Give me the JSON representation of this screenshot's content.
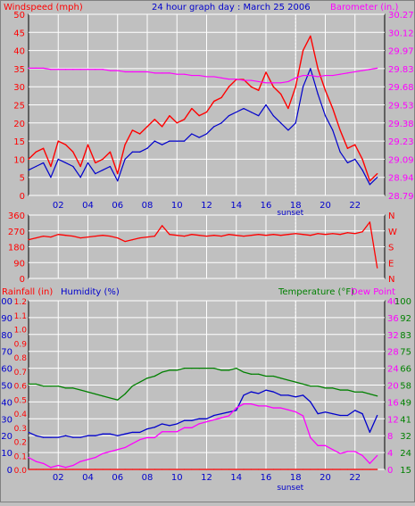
{
  "header": {
    "windspeed_label": "Windspeed (mph)",
    "title": "24 hour graph day : March 25 2006",
    "barometer_label": "Barometer (in.)"
  },
  "colors": {
    "background": "#c0c0c0",
    "plot_bg": "#c0c0c0",
    "grid": "#ffffff",
    "wind_gust": "#ff0000",
    "wind_avg": "#0000cc",
    "barometer": "#ff00ff",
    "wind_dir": "#ff0000",
    "rain": "#ff0000",
    "humidity": "#0000cc",
    "temperature": "#008000",
    "dewpoint": "#ff00ff"
  },
  "x_axis": {
    "ticks": [
      "02",
      "04",
      "06",
      "08",
      "10",
      "12",
      "14",
      "16",
      "18",
      "20",
      "22"
    ],
    "sunset_label": "sunset",
    "range_hours": [
      0,
      24
    ]
  },
  "chart_data": [
    {
      "type": "line",
      "title": "24 hour graph day : March 25 2006",
      "xlabel": "",
      "ylabel": "Windspeed (mph)",
      "y2label": "Barometer (in.)",
      "x_hours": [
        0,
        0.5,
        1,
        1.5,
        2,
        2.5,
        3,
        3.5,
        4,
        4.5,
        5,
        5.5,
        6,
        6.5,
        7,
        7.5,
        8,
        8.5,
        9,
        9.5,
        10,
        10.5,
        11,
        11.5,
        12,
        12.5,
        13,
        13.5,
        14,
        14.5,
        15,
        15.5,
        16,
        16.5,
        17,
        17.5,
        18,
        18.5,
        19,
        19.5,
        20,
        20.5,
        21,
        21.5,
        22,
        22.5,
        23,
        23.5
      ],
      "ylim": [
        0,
        50
      ],
      "yticks": [
        "0",
        "5",
        "10",
        "15",
        "20",
        "25",
        "30",
        "35",
        "40",
        "45",
        "50"
      ],
      "y2lim": [
        28.79,
        30.27
      ],
      "y2ticks": [
        "28.79",
        "28.94",
        "29.09",
        "29.23",
        "29.38",
        "29.53",
        "29.68",
        "29.83",
        "29.97",
        "30.12",
        "30.27"
      ],
      "series": [
        {
          "name": "gust",
          "axis": "left",
          "values": [
            10,
            12,
            13,
            8,
            15,
            14,
            12,
            8,
            14,
            9,
            10,
            12,
            6,
            14,
            18,
            17,
            19,
            21,
            19,
            22,
            20,
            21,
            24,
            22,
            23,
            26,
            27,
            30,
            32,
            32,
            30,
            29,
            34,
            30,
            28,
            24,
            30,
            40,
            44,
            35,
            29,
            24,
            18,
            13,
            14,
            10,
            4,
            6
          ]
        },
        {
          "name": "average",
          "axis": "left",
          "values": [
            7,
            8,
            9,
            5,
            10,
            9,
            8,
            5,
            9,
            6,
            7,
            8,
            4,
            10,
            12,
            12,
            13,
            15,
            14,
            15,
            15,
            15,
            17,
            16,
            17,
            19,
            20,
            22,
            23,
            24,
            23,
            22,
            25,
            22,
            20,
            18,
            20,
            30,
            35,
            28,
            22,
            18,
            12,
            9,
            10,
            7,
            3,
            5
          ]
        },
        {
          "name": "barometer",
          "axis": "right",
          "values": [
            29.83,
            29.83,
            29.83,
            29.82,
            29.82,
            29.82,
            29.82,
            29.82,
            29.82,
            29.82,
            29.82,
            29.81,
            29.81,
            29.8,
            29.8,
            29.8,
            29.8,
            29.79,
            29.79,
            29.79,
            29.78,
            29.78,
            29.77,
            29.77,
            29.76,
            29.76,
            29.75,
            29.74,
            29.74,
            29.73,
            29.73,
            29.72,
            29.71,
            29.71,
            29.71,
            29.72,
            29.75,
            29.77,
            29.77,
            29.76,
            29.77,
            29.77,
            29.78,
            29.79,
            29.8,
            29.81,
            29.82,
            29.83
          ]
        }
      ]
    },
    {
      "type": "line",
      "ylabel": "",
      "ylim": [
        0,
        360
      ],
      "yticks": [
        "0",
        "90",
        "180",
        "270",
        "360"
      ],
      "y2ticks": [
        "N",
        "E",
        "S",
        "W",
        "N"
      ],
      "x_hours": [
        0,
        0.5,
        1,
        1.5,
        2,
        2.5,
        3,
        3.5,
        4,
        4.5,
        5,
        5.5,
        6,
        6.5,
        7,
        7.5,
        8,
        8.5,
        9,
        9.5,
        10,
        10.5,
        11,
        11.5,
        12,
        12.5,
        13,
        13.5,
        14,
        14.5,
        15,
        15.5,
        16,
        16.5,
        17,
        17.5,
        18,
        18.5,
        19,
        19.5,
        20,
        20.5,
        21,
        21.5,
        22,
        22.5,
        23,
        23.5
      ],
      "series": [
        {
          "name": "direction",
          "values": [
            220,
            230,
            240,
            235,
            250,
            245,
            240,
            230,
            235,
            240,
            245,
            240,
            230,
            210,
            220,
            230,
            235,
            240,
            300,
            250,
            245,
            240,
            250,
            245,
            240,
            245,
            240,
            250,
            245,
            240,
            245,
            250,
            245,
            250,
            245,
            250,
            255,
            250,
            245,
            255,
            250,
            255,
            250,
            260,
            255,
            265,
            320,
            60
          ]
        }
      ]
    },
    {
      "type": "line",
      "y_left_rain_ticks": [
        "0.0",
        "0.1",
        "0.2",
        "0.3",
        "0.4",
        "0.5",
        "0.6",
        "0.7",
        "0.8",
        "0.9",
        "1.0",
        "1.1",
        "1.2"
      ],
      "y_left_humidity_ticks": [
        "0",
        "10",
        "20",
        "30",
        "40",
        "50",
        "60",
        "70",
        "80",
        "90",
        "100"
      ],
      "y_right_temp_ticks": [
        "0",
        "4",
        "8",
        "12",
        "16",
        "20",
        "24",
        "28",
        "32",
        "36",
        "40"
      ],
      "y_right_temp2_ticks": [
        "15",
        "24",
        "32",
        "41",
        "49",
        "58",
        "66",
        "75",
        "83",
        "92",
        "100"
      ],
      "labels": {
        "rain": "Rainfall (in)",
        "humidity": "Humidity (%)",
        "temperature": "Temperature (°F)",
        "dewpoint": "Dew Point"
      },
      "x_hours": [
        0,
        0.5,
        1,
        1.5,
        2,
        2.5,
        3,
        3.5,
        4,
        4.5,
        5,
        5.5,
        6,
        6.5,
        7,
        7.5,
        8,
        8.5,
        9,
        9.5,
        10,
        10.5,
        11,
        11.5,
        12,
        12.5,
        13,
        13.5,
        14,
        14.5,
        15,
        15.5,
        16,
        16.5,
        17,
        17.5,
        18,
        18.5,
        19,
        19.5,
        20,
        20.5,
        21,
        21.5,
        22,
        22.5,
        23,
        23.5
      ],
      "humidity_ylim": [
        0,
        100
      ],
      "temp_ylim": [
        15,
        100
      ],
      "series": [
        {
          "name": "humidity",
          "axis": "humidity",
          "values": [
            22,
            20,
            19,
            19,
            19,
            20,
            19,
            19,
            20,
            20,
            21,
            21,
            20,
            21,
            22,
            22,
            24,
            25,
            27,
            26,
            27,
            29,
            29,
            30,
            30,
            32,
            33,
            34,
            35,
            44,
            46,
            45,
            47,
            46,
            44,
            44,
            43,
            44,
            40,
            33,
            34,
            33,
            32,
            32,
            35,
            33,
            22,
            32
          ]
        },
        {
          "name": "temperature",
          "axis": "temp",
          "values": [
            58,
            58,
            57,
            57,
            57,
            56,
            56,
            55,
            54,
            53,
            52,
            51,
            50,
            53,
            57,
            59,
            61,
            62,
            64,
            65,
            65,
            66,
            66,
            66,
            66,
            66,
            65,
            65,
            66,
            64,
            63,
            63,
            62,
            62,
            61,
            60,
            59,
            58,
            57,
            57,
            56,
            56,
            55,
            55,
            54,
            54,
            53,
            52
          ]
        },
        {
          "name": "dewpoint",
          "axis": "temp",
          "values": [
            21,
            19,
            18,
            16,
            17,
            16,
            17,
            19,
            20,
            21,
            23,
            24,
            25,
            26,
            28,
            30,
            31,
            31,
            34,
            34,
            34,
            36,
            36,
            38,
            39,
            40,
            41,
            42,
            46,
            48,
            48,
            47,
            47,
            46,
            46,
            45,
            44,
            42,
            31,
            27,
            27,
            25,
            23,
            24,
            24,
            22,
            18,
            22
          ]
        },
        {
          "name": "rain",
          "axis": "rain",
          "values": [
            0,
            0,
            0,
            0,
            0,
            0,
            0,
            0,
            0,
            0,
            0,
            0,
            0,
            0,
            0,
            0,
            0,
            0,
            0,
            0,
            0,
            0,
            0,
            0,
            0,
            0,
            0,
            0,
            0,
            0,
            0,
            0,
            0,
            0,
            0,
            0,
            0,
            0,
            0,
            0,
            0,
            0,
            0,
            0,
            0,
            0,
            0,
            0
          ]
        }
      ]
    }
  ]
}
